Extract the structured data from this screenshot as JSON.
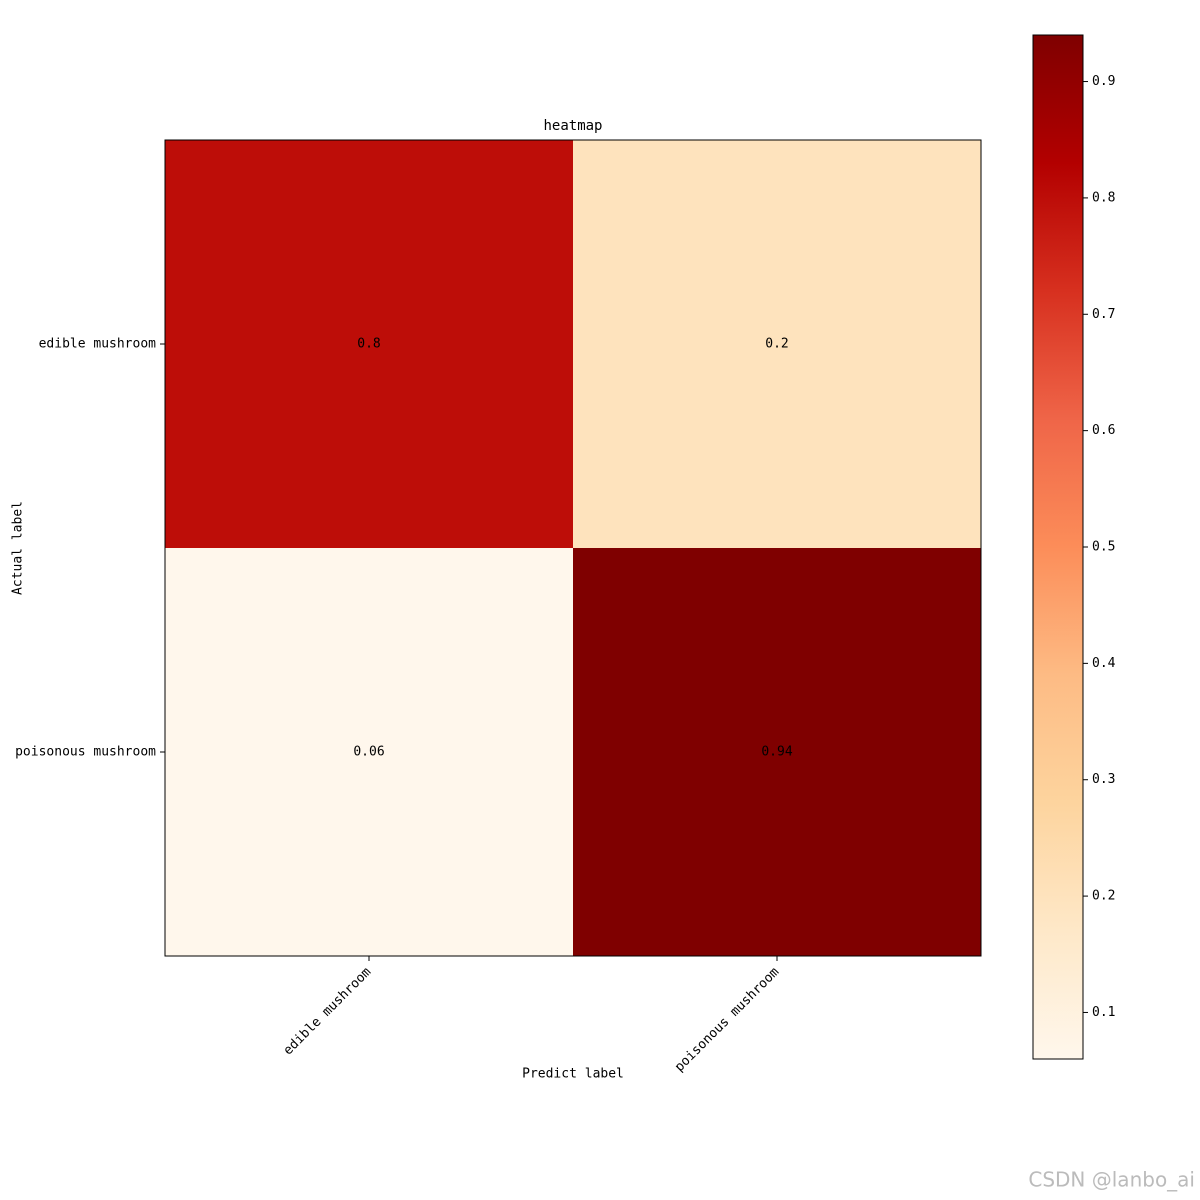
{
  "chart_data": {
    "type": "heatmap",
    "title": "heatmap",
    "x_label": "Predict label",
    "y_label": "Actual label",
    "x_categories": [
      "edible mushroom",
      "poisonous mushroom"
    ],
    "y_categories": [
      "edible mushroom",
      "poisonous mushroom"
    ],
    "values": [
      [
        0.8,
        0.2
      ],
      [
        0.06,
        0.94
      ]
    ],
    "colormap": "OrRd",
    "colorbar_lim": [
      0.06,
      0.94
    ],
    "colorbar_ticks": [
      0.1,
      0.2,
      0.3,
      0.4,
      0.5,
      0.6,
      0.7,
      0.8,
      0.9
    ]
  },
  "watermark": "CSDN @lanbo_ai"
}
